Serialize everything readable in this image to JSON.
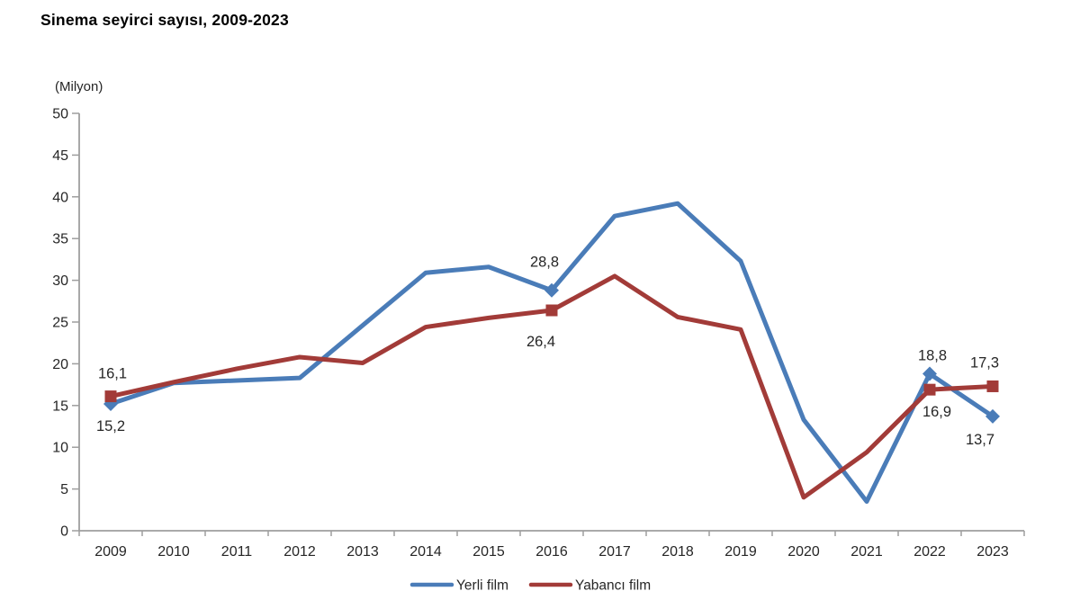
{
  "title": "Sinema seyirci sayısı, 2009-2023",
  "axis_unit_label": "(Milyon)",
  "colors": {
    "yerli_film": "#4a7cb8",
    "yabanci_film": "#a23b38",
    "axis": "#9e9e9e",
    "tick_text": "#262626",
    "data_label_text": "#262626"
  },
  "chart_data": {
    "type": "line",
    "title": "Sinema seyirci sayısı, 2009-2023",
    "ylabel": "(Milyon)",
    "xlabel": "",
    "ylim": [
      0,
      50
    ],
    "y_ticks": [
      0,
      5,
      10,
      15,
      20,
      25,
      30,
      35,
      40,
      45,
      50
    ],
    "grid": false,
    "legend_position": "bottom",
    "categories": [
      "2009",
      "2010",
      "2011",
      "2012",
      "2013",
      "2014",
      "2015",
      "2016",
      "2017",
      "2018",
      "2019",
      "2020",
      "2021",
      "2022",
      "2023"
    ],
    "series": [
      {
        "name": "Yerli film",
        "slug": "yerli-film",
        "color": "#4a7cb8",
        "marker": "diamond",
        "values": [
          15.2,
          17.7,
          18.0,
          18.3,
          24.6,
          30.9,
          31.6,
          28.8,
          37.7,
          39.2,
          32.3,
          13.3,
          3.5,
          18.8,
          13.7
        ],
        "labeled_points": [
          {
            "index": 0,
            "text": "15,2",
            "dx": 0,
            "dy": 30
          },
          {
            "index": 7,
            "text": "28,8",
            "dx": -8,
            "dy": -26
          },
          {
            "index": 13,
            "text": "18,8",
            "dx": 3,
            "dy": -15
          },
          {
            "index": 14,
            "text": "13,7",
            "dx": -14,
            "dy": 31
          }
        ]
      },
      {
        "name": "Yabancı film",
        "slug": "yabanci-film",
        "color": "#a23b38",
        "marker": "square",
        "values": [
          16.1,
          17.8,
          19.4,
          20.8,
          20.1,
          24.4,
          25.5,
          26.4,
          30.5,
          25.6,
          24.1,
          4.0,
          9.4,
          16.9,
          17.3
        ],
        "labeled_points": [
          {
            "index": 0,
            "text": "16,1",
            "dx": 2,
            "dy": -20
          },
          {
            "index": 7,
            "text": "26,4",
            "dx": -12,
            "dy": 40
          },
          {
            "index": 13,
            "text": "16,9",
            "dx": 8,
            "dy": 30
          },
          {
            "index": 14,
            "text": "17,3",
            "dx": -9,
            "dy": -21
          }
        ]
      }
    ]
  }
}
